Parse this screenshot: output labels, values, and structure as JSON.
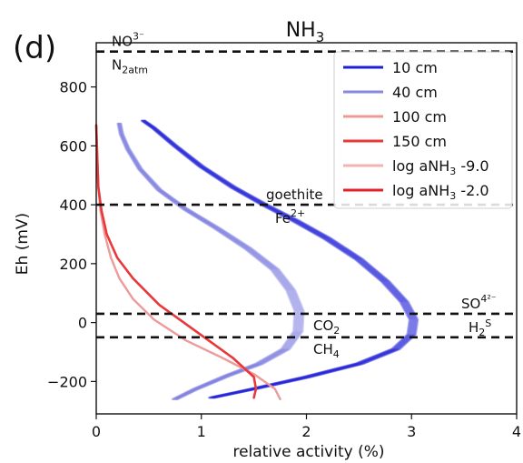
{
  "chart_data": {
    "type": "line",
    "panel_label": "(d)",
    "title": "NH",
    "title_sub": "3",
    "xlabel": "relative activity (%)",
    "ylabel": "Eh (mV)",
    "xlim": [
      0,
      4
    ],
    "ylim": [
      -310,
      950
    ],
    "xticks": [
      0,
      1,
      2,
      3,
      4
    ],
    "yticks": [
      -200,
      0,
      200,
      400,
      600,
      800
    ],
    "ytick_labels": [
      "−200",
      "0",
      "200",
      "400",
      "600",
      "800"
    ],
    "grid": false,
    "legend_position": "top-right",
    "reference_lines": [
      {
        "y": 920,
        "upper": "NO",
        "upper_sub": "",
        "upper_sup": "3⁻",
        "lower": "N",
        "lower_sub": "2atm",
        "lower_sup": ""
      },
      {
        "y": 400,
        "upper": "goethite",
        "upper_sub": "",
        "upper_sup": "",
        "lower": "Fe",
        "lower_sub": "",
        "lower_sup": "2+"
      },
      {
        "y": 30,
        "upper": "SO",
        "upper_sub": "",
        "upper_sup": "4²⁻",
        "lower": "H",
        "lower_sub": "2",
        "lower_sup": "S"
      },
      {
        "y": -50,
        "upper": "CO",
        "upper_sub": "2",
        "upper_sup": "",
        "lower": "CH",
        "lower_sub": "4",
        "lower_sup": ""
      }
    ],
    "series": [
      {
        "name": "10 cm",
        "color": "#1f1fd6",
        "width": 2.4,
        "opacity": 1.0,
        "spread": 0.08,
        "x": [
          0.45,
          0.55,
          0.75,
          1.0,
          1.3,
          1.6,
          1.9,
          2.2,
          2.5,
          2.75,
          2.93,
          3.02,
          3.0,
          2.85,
          2.5,
          2.0,
          1.5,
          1.1
        ],
        "y": [
          685,
          660,
          600,
          530,
          460,
          400,
          345,
          285,
          215,
          140,
          70,
          10,
          -40,
          -90,
          -140,
          -185,
          -225,
          -255
        ]
      },
      {
        "name": "40 cm",
        "color": "#7b7be0",
        "width": 2.4,
        "opacity": 0.9,
        "spread": 0.09,
        "x": [
          0.22,
          0.24,
          0.3,
          0.42,
          0.6,
          0.85,
          1.15,
          1.45,
          1.7,
          1.85,
          1.93,
          1.92,
          1.8,
          1.55,
          1.25,
          0.95,
          0.75
        ],
        "y": [
          675,
          640,
          590,
          520,
          450,
          385,
          320,
          250,
          180,
          110,
          40,
          -30,
          -90,
          -140,
          -180,
          -225,
          -260
        ]
      },
      {
        "name": "100 cm",
        "color": "#ee9a9a",
        "width": 2.4,
        "opacity": 1.0,
        "spread": 0.0,
        "x": [
          0.0,
          0.01,
          0.02,
          0.04,
          0.08,
          0.14,
          0.22,
          0.35,
          0.55,
          0.85,
          1.2,
          1.5,
          1.7,
          1.75
        ],
        "y": [
          670,
          560,
          460,
          380,
          300,
          220,
          150,
          80,
          10,
          -60,
          -120,
          -175,
          -225,
          -260
        ]
      },
      {
        "name": "150 cm",
        "color": "#e8383a",
        "width": 2.6,
        "opacity": 1.0,
        "spread": 0.0,
        "x": [
          0.0,
          0.01,
          0.02,
          0.05,
          0.1,
          0.2,
          0.35,
          0.6,
          0.95,
          1.3,
          1.5,
          1.52,
          1.5
        ],
        "y": [
          670,
          560,
          460,
          380,
          300,
          220,
          150,
          60,
          -30,
          -120,
          -185,
          -225,
          -255
        ]
      }
    ],
    "legend": [
      {
        "label": "10 cm",
        "color": "#1f1fd6",
        "opacity": 1.0
      },
      {
        "label": "40 cm",
        "color": "#7b7be0",
        "opacity": 0.9
      },
      {
        "label": "100 cm",
        "color": "#ee9a9a",
        "opacity": 1.0
      },
      {
        "label": "150 cm",
        "color": "#e8383a",
        "opacity": 1.0
      },
      {
        "label": "log aNH",
        "label_sub": "3",
        "label_after": " -9.0",
        "color": "#f2b3b3",
        "opacity": 1.0
      },
      {
        "label": "log aNH",
        "label_sub": "3",
        "label_after": " -2.0",
        "color": "#e0222a",
        "opacity": 1.0
      }
    ]
  }
}
